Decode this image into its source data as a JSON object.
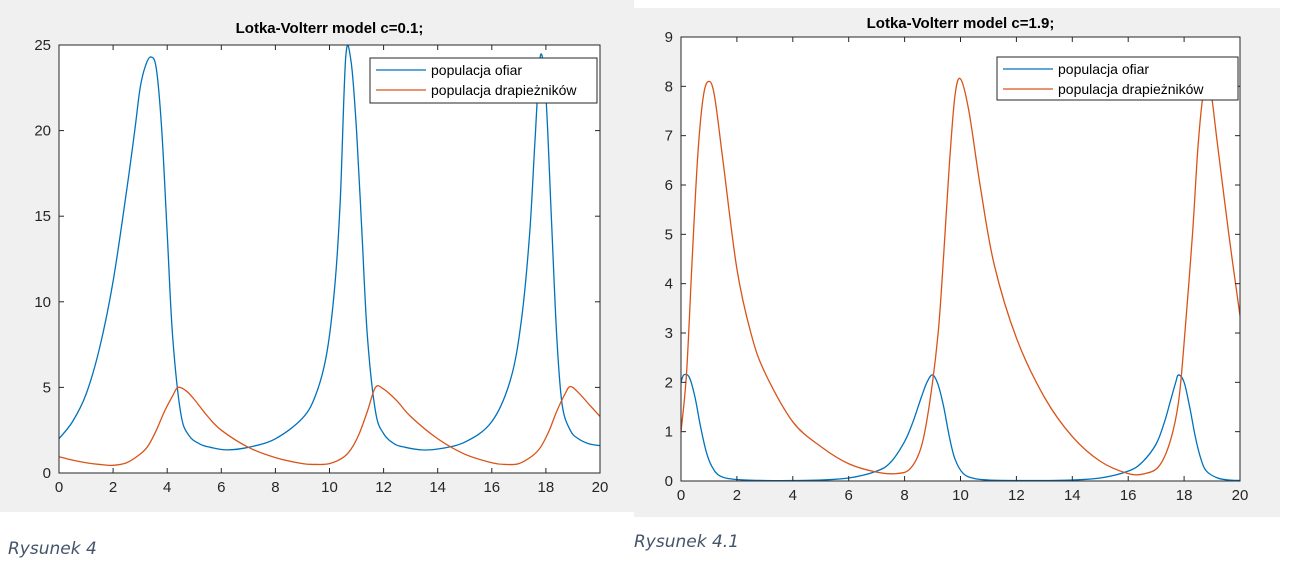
{
  "captions": [
    "Rysunek 4",
    "Rysunek 4.1"
  ],
  "chart_data": [
    {
      "type": "line",
      "title": "Lotka-Volterr model c=0.1;",
      "xlabel": "",
      "ylabel": "",
      "xlim": [
        0,
        20
      ],
      "ylim": [
        0,
        25
      ],
      "xticks": [
        0,
        2,
        4,
        6,
        8,
        10,
        12,
        14,
        16,
        18,
        20
      ],
      "yticks": [
        0,
        5,
        10,
        15,
        20,
        25
      ],
      "legend": {
        "position": "top-right",
        "entries": [
          "populacja ofiar",
          "populacja drapieżników"
        ]
      },
      "series": [
        {
          "name": "populacja ofiar",
          "color": "#0072bd",
          "x": [
            0,
            0.5,
            1,
            1.5,
            2,
            2.5,
            2.8,
            3.0,
            3.2,
            3.4,
            3.6,
            3.8,
            4.0,
            4.2,
            4.5,
            4.8,
            5.2,
            5.6,
            6.2,
            7,
            8,
            9,
            9.5,
            9.9,
            10.2,
            10.4,
            10.6,
            10.8,
            11.0,
            11.2,
            11.4,
            11.7,
            12.0,
            12.4,
            12.8,
            13.4,
            14,
            15,
            16,
            16.7,
            17.1,
            17.4,
            17.6,
            17.8,
            18.0,
            18.2,
            18.4,
            18.6,
            18.9,
            19.2,
            19.6,
            20
          ],
          "values": [
            2.0,
            3.0,
            4.6,
            7.3,
            11.2,
            16.5,
            20.0,
            22.5,
            23.8,
            24.3,
            23.6,
            20.0,
            14.0,
            8.0,
            3.5,
            2.2,
            1.7,
            1.5,
            1.35,
            1.5,
            2.0,
            3.2,
            4.6,
            7.0,
            11.0,
            16.0,
            24.3,
            24.0,
            20.0,
            14.0,
            8.0,
            3.6,
            2.3,
            1.7,
            1.5,
            1.35,
            1.4,
            1.8,
            3.0,
            5.5,
            9.0,
            14.0,
            19.5,
            24.4,
            22.0,
            15.0,
            8.0,
            4.0,
            2.5,
            2.0,
            1.7,
            1.6
          ]
        },
        {
          "name": "populacja drapieżników",
          "color": "#d95319",
          "x": [
            0,
            0.5,
            1,
            1.5,
            2,
            2.5,
            3,
            3.3,
            3.6,
            3.9,
            4.2,
            4.4,
            4.7,
            5,
            5.5,
            6,
            7,
            8,
            9,
            9.5,
            10,
            10.5,
            10.8,
            11.1,
            11.4,
            11.7,
            12,
            12.5,
            13,
            14,
            15,
            16,
            16.5,
            17,
            17.5,
            17.8,
            18.1,
            18.4,
            18.7,
            18.9,
            19.2,
            19.6,
            20
          ],
          "values": [
            0.95,
            0.75,
            0.6,
            0.5,
            0.45,
            0.6,
            1.1,
            1.6,
            2.5,
            3.6,
            4.5,
            5.0,
            4.8,
            4.3,
            3.3,
            2.5,
            1.5,
            0.9,
            0.55,
            0.5,
            0.55,
            0.9,
            1.4,
            2.3,
            3.6,
            5.0,
            4.9,
            4.2,
            3.3,
            2.0,
            1.1,
            0.6,
            0.5,
            0.55,
            1.0,
            1.5,
            2.4,
            3.6,
            4.6,
            5.05,
            4.7,
            4.0,
            3.3
          ]
        }
      ]
    },
    {
      "type": "line",
      "title": "Lotka-Volterr model c=1.9;",
      "xlabel": "",
      "ylabel": "",
      "xlim": [
        0,
        20
      ],
      "ylim": [
        0,
        9
      ],
      "xticks": [
        0,
        2,
        4,
        6,
        8,
        10,
        12,
        14,
        16,
        18,
        20
      ],
      "yticks": [
        0,
        1,
        2,
        3,
        4,
        5,
        6,
        7,
        8,
        9
      ],
      "legend": {
        "position": "top-right",
        "entries": [
          "populacja ofiar",
          "populacja drapieżników"
        ]
      },
      "series": [
        {
          "name": "populacja ofiar",
          "color": "#0072bd",
          "x": [
            0,
            0.1,
            0.3,
            0.5,
            0.7,
            0.9,
            1.1,
            1.4,
            2,
            3,
            4,
            5,
            6,
            7,
            7.5,
            8,
            8.3,
            8.6,
            8.8,
            9.0,
            9.2,
            9.4,
            9.6,
            9.8,
            10.1,
            10.5,
            11,
            12,
            13,
            14,
            15,
            16,
            16.5,
            17,
            17.3,
            17.5,
            17.7,
            17.8,
            18.0,
            18.2,
            18.4,
            18.6,
            18.8,
            19.2,
            19.6,
            20
          ],
          "values": [
            2.0,
            2.15,
            2.1,
            1.7,
            1.1,
            0.6,
            0.3,
            0.1,
            0.03,
            0.01,
            0.01,
            0.02,
            0.06,
            0.2,
            0.38,
            0.8,
            1.2,
            1.7,
            2.0,
            2.15,
            1.95,
            1.5,
            0.9,
            0.45,
            0.15,
            0.05,
            0.02,
            0.01,
            0.01,
            0.02,
            0.06,
            0.2,
            0.38,
            0.75,
            1.2,
            1.6,
            2.0,
            2.15,
            2.0,
            1.5,
            0.9,
            0.45,
            0.2,
            0.06,
            0.02,
            0.01
          ]
        },
        {
          "name": "populacja drapieżników",
          "color": "#d95319",
          "x": [
            0,
            0.2,
            0.4,
            0.6,
            0.8,
            1.0,
            1.2,
            1.5,
            2,
            2.5,
            3,
            4,
            5,
            6,
            7,
            7.7,
            8.2,
            8.6,
            8.9,
            9.2,
            9.4,
            9.6,
            9.8,
            10.0,
            10.3,
            10.7,
            11.2,
            12,
            13,
            14,
            15,
            16,
            16.6,
            17.1,
            17.5,
            17.8,
            18.0,
            18.3,
            18.5,
            18.7,
            18.9,
            19.2,
            19.6,
            20
          ],
          "values": [
            1.0,
            2.2,
            4.5,
            6.6,
            7.8,
            8.1,
            7.8,
            6.5,
            4.3,
            3.0,
            2.2,
            1.2,
            0.7,
            0.35,
            0.18,
            0.15,
            0.25,
            0.7,
            1.6,
            3.0,
            4.6,
            6.4,
            7.8,
            8.15,
            7.5,
            6.0,
            4.4,
            2.9,
            1.7,
            0.9,
            0.4,
            0.15,
            0.15,
            0.3,
            0.8,
            1.6,
            2.8,
            5.0,
            6.8,
            7.9,
            8.1,
            6.8,
            5.0,
            3.35
          ]
        }
      ]
    }
  ]
}
